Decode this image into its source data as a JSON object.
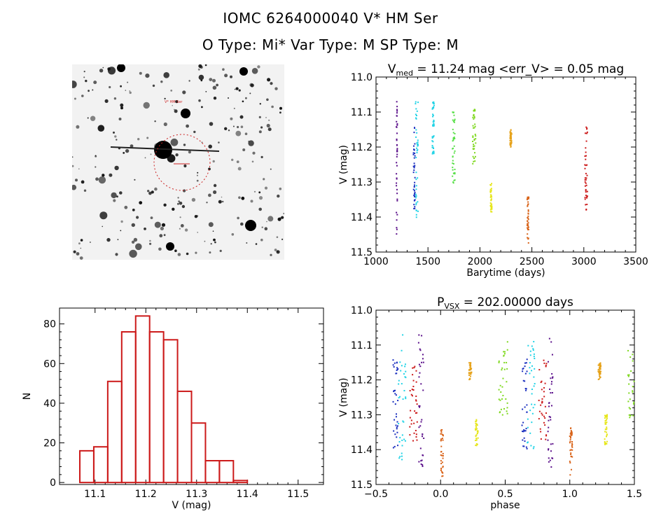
{
  "header": {
    "title_line1": "IOMC 6264000040    V* HM Ser",
    "title_line2": "O Type: Mi*   Var Type: M   SP Type: M"
  },
  "image_panel": {
    "description_label": "V* HM Ser",
    "colors": {
      "background": "#f2f2f2",
      "stars": "#111111",
      "circle": "#cc2222"
    }
  },
  "chart_data": [
    {
      "id": "lightcurve",
      "type": "scatter",
      "title_main": "V",
      "title_sub": "med",
      "title_rest": " = 11.24 mag <err_V> = 0.05 mag",
      "xlabel": "Barytime (days)",
      "ylabel": "V (mag)",
      "xlim": [
        1000,
        3500
      ],
      "ylim": [
        11.5,
        11.0
      ],
      "xticks": [
        1000,
        1500,
        2000,
        2500,
        3000,
        3500
      ],
      "yticks": [
        11.0,
        11.1,
        11.2,
        11.3,
        11.4,
        11.5
      ],
      "series": [
        {
          "name": "seg1",
          "color": "#5a0f8a",
          "x": [
            1195,
            1205
          ],
          "v": [
            11.07,
            11.45
          ]
        },
        {
          "name": "seg2",
          "color": "#1a2fbf",
          "x": [
            1360,
            1375
          ],
          "v": [
            11.14,
            11.4
          ]
        },
        {
          "name": "seg3",
          "color": "#22d3e6",
          "x": [
            1380,
            1405
          ],
          "v": [
            11.07,
            11.43
          ]
        },
        {
          "name": "seg4",
          "color": "#22d3e6",
          "x": [
            1540,
            1560
          ],
          "v": [
            11.07,
            11.22
          ]
        },
        {
          "name": "seg5",
          "color": "#5ae04a",
          "x": [
            1735,
            1760
          ],
          "v": [
            11.1,
            11.31
          ]
        },
        {
          "name": "seg6",
          "color": "#7ed81e",
          "x": [
            1930,
            1960
          ],
          "v": [
            11.09,
            11.25
          ]
        },
        {
          "name": "seg7",
          "color": "#e6e61a",
          "x": [
            2100,
            2115
          ],
          "v": [
            11.3,
            11.39
          ]
        },
        {
          "name": "seg8",
          "color": "#e6a21a",
          "x": [
            2290,
            2305
          ],
          "v": [
            11.15,
            11.2
          ]
        },
        {
          "name": "seg9",
          "color": "#d9641a",
          "x": [
            2455,
            2470
          ],
          "v": [
            11.33,
            11.48
          ]
        },
        {
          "name": "seg10",
          "color": "#cc1a1a",
          "x": [
            3010,
            3035
          ],
          "v": [
            11.14,
            11.38
          ]
        }
      ]
    },
    {
      "id": "histogram",
      "type": "bar",
      "xlabel": "V (mag)",
      "ylabel": "N",
      "xlim": [
        11.03,
        11.55
      ],
      "ylim": [
        -1,
        88
      ],
      "xticks": [
        11.1,
        11.2,
        11.3,
        11.4,
        11.5
      ],
      "yticks": [
        0,
        20,
        40,
        60,
        80
      ],
      "bin_start": 11.07,
      "bin_width": 0.0275,
      "values": [
        16,
        18,
        51,
        76,
        84,
        76,
        72,
        46,
        30,
        11,
        11,
        1
      ],
      "bar_color": "#cc1a1a"
    },
    {
      "id": "phased",
      "type": "scatter",
      "title_main": "P",
      "title_sub": "VSX",
      "title_rest": " = 202.00000 days",
      "xlabel": "phase",
      "ylabel": "V (mag)",
      "xlim": [
        -0.5,
        1.5
      ],
      "ylim": [
        11.5,
        11.0
      ],
      "xticks": [
        -0.5,
        0.0,
        0.5,
        1.0,
        1.5
      ],
      "xticklabels": [
        "−0.5",
        "0.0",
        "0.5",
        "1.0",
        "1.5"
      ],
      "yticks": [
        11.0,
        11.1,
        11.2,
        11.3,
        11.4,
        11.5
      ],
      "series": [
        {
          "name": "p1",
          "color": "#5a0f8a",
          "phase": [
            -0.17,
            -0.13
          ],
          "v": [
            11.07,
            11.45
          ]
        },
        {
          "name": "p2",
          "color": "#1a2fbf",
          "phase": [
            -0.37,
            -0.33
          ],
          "v": [
            11.14,
            11.4
          ]
        },
        {
          "name": "p3",
          "color": "#22d3e6",
          "phase": [
            -0.33,
            -0.27
          ],
          "v": [
            11.07,
            11.43
          ]
        },
        {
          "name": "p4",
          "color": "#cc1a1a",
          "phase": [
            -0.24,
            -0.18
          ],
          "v": [
            11.14,
            11.38
          ]
        },
        {
          "name": "p5",
          "color": "#7ed81e",
          "phase": [
            0.45,
            0.52
          ],
          "v": [
            11.09,
            11.31
          ]
        },
        {
          "name": "p6",
          "color": "#e6a21a",
          "phase": [
            0.22,
            0.24
          ],
          "v": [
            11.15,
            11.2
          ]
        },
        {
          "name": "p7",
          "color": "#e6e61a",
          "phase": [
            0.27,
            0.29
          ],
          "v": [
            11.3,
            11.39
          ]
        },
        {
          "name": "p8",
          "color": "#d9641a",
          "phase": [
            0.0,
            0.02
          ],
          "v": [
            11.33,
            11.48
          ]
        }
      ]
    }
  ]
}
